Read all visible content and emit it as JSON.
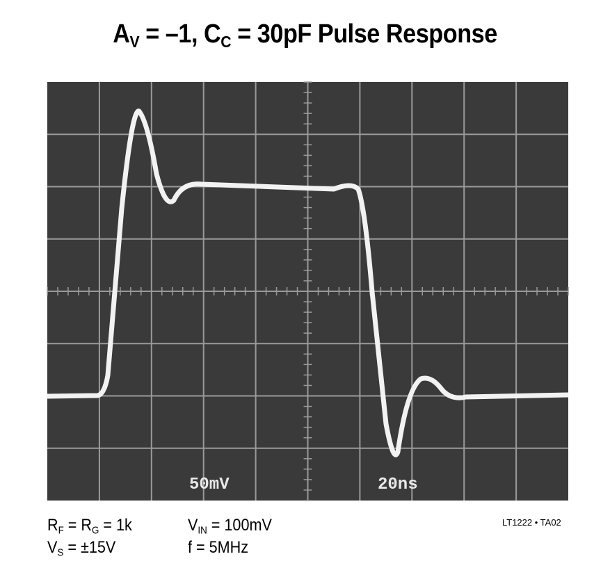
{
  "title": {
    "parts": [
      "A",
      "V",
      " = –1, C",
      "C",
      " = 30pF Pulse Response"
    ]
  },
  "scope": {
    "volts_per_div": "50mV",
    "time_per_div": "20ns"
  },
  "conditions": {
    "rf_rg": {
      "parts": [
        "R",
        "F",
        " = R",
        "G",
        " = 1k"
      ]
    },
    "vs": {
      "parts": [
        "V",
        "S",
        " = ±15V"
      ]
    },
    "vin": {
      "parts": [
        "V",
        "IN",
        " = 100mV"
      ]
    },
    "f": "f = 5MHz"
  },
  "figure_id": "LT1222 • TA02"
}
